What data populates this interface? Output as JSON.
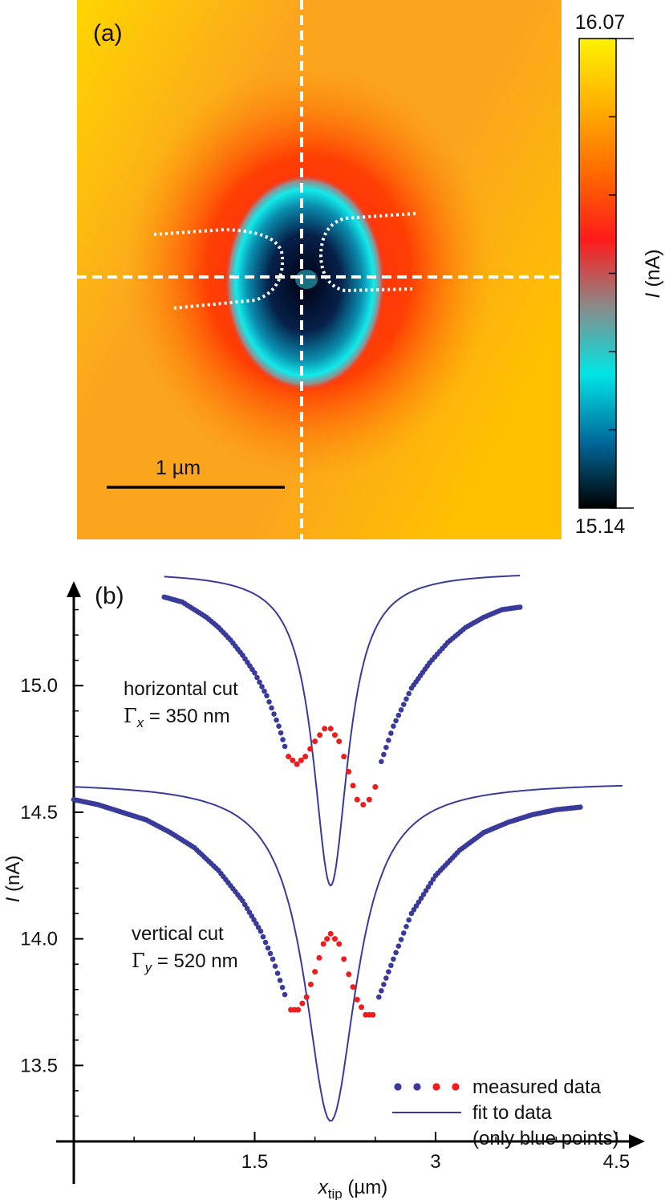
{
  "chart_data": [
    {
      "panel_label": "(a)",
      "type": "heatmap",
      "colorbar": {
        "label_italic": "I",
        "label_rest": " (nA)",
        "max": 16.07,
        "min": 15.14,
        "max_label": "16.07",
        "min_label": "15.14",
        "colors": [
          "#fff200",
          "#ffb000",
          "#ff6a00",
          "#ff1a1a",
          "#8a8a8a",
          "#00e5e5",
          "#006b9e",
          "#000000"
        ]
      },
      "scale_bar_label": "1 µm",
      "colors": {
        "background": "#fba51e",
        "cut_lines": "#ffffff",
        "scale_bar": "#000000"
      }
    },
    {
      "panel_label": "(b)",
      "type": "line",
      "xlabel_italic": "x",
      "xlabel_sub": "tip",
      "xlabel_rest": " (µm)",
      "ylabel_italic": "I",
      "ylabel_rest": " (nA)",
      "xlim": [
        0,
        4.55
      ],
      "ylim": [
        13.2,
        15.4
      ],
      "xticks": [
        {
          "value": 1.5,
          "label": "1.5"
        },
        {
          "value": 3,
          "label": "3"
        },
        {
          "value": 4.5,
          "label": "4.5"
        }
      ],
      "yticks": [
        {
          "value": 13.5,
          "label": "13.5"
        },
        {
          "value": 14.0,
          "label": "14.0"
        },
        {
          "value": 14.5,
          "label": "14.5"
        },
        {
          "value": 15.0,
          "label": "15.0"
        }
      ],
      "annotations": {
        "horizontal_1": "horizontal cut",
        "horizontal_gamma_sym": "Γ",
        "horizontal_gamma_sub": "x",
        "horizontal_gamma_val": " = 350 nm",
        "vertical_1": "vertical cut",
        "vertical_gamma_sym": "Γ",
        "vertical_gamma_sub": "y",
        "vertical_gamma_val": " = 520 nm"
      },
      "legend": {
        "position": "bottom-right",
        "measured": "measured data",
        "fit": "fit to data",
        "fit_note": "(only blue points)"
      },
      "series": [
        {
          "name": "horizontal cut",
          "center": 2.13,
          "measured_blue_left": [
            [
              0.75,
              15.35
            ],
            [
              0.9,
              15.33
            ],
            [
              1.0,
              15.3
            ],
            [
              1.1,
              15.27
            ],
            [
              1.2,
              15.23
            ],
            [
              1.3,
              15.18
            ],
            [
              1.4,
              15.12
            ],
            [
              1.5,
              15.05
            ],
            [
              1.6,
              14.96
            ],
            [
              1.7,
              14.84
            ],
            [
              1.75,
              14.76
            ]
          ],
          "measured_red": [
            [
              1.78,
              14.72
            ],
            [
              1.85,
              14.69
            ],
            [
              1.92,
              14.72
            ],
            [
              2.0,
              14.78
            ],
            [
              2.08,
              14.83
            ],
            [
              2.13,
              14.83
            ],
            [
              2.2,
              14.78
            ],
            [
              2.28,
              14.66
            ],
            [
              2.35,
              14.55
            ],
            [
              2.4,
              14.53
            ],
            [
              2.45,
              14.55
            ],
            [
              2.5,
              14.6
            ]
          ],
          "measured_blue_right": [
            [
              2.55,
              14.7
            ],
            [
              2.65,
              14.84
            ],
            [
              2.8,
              14.99
            ],
            [
              2.95,
              15.09
            ],
            [
              3.1,
              15.17
            ],
            [
              3.25,
              15.23
            ],
            [
              3.4,
              15.27
            ],
            [
              3.55,
              15.3
            ],
            [
              3.7,
              15.31
            ]
          ],
          "fit": {
            "baseline": 15.45,
            "depth": 1.24,
            "gamma": 0.35,
            "x": [
              0.75,
              3.7
            ]
          }
        },
        {
          "name": "vertical cut",
          "center": 2.13,
          "measured_blue_left": [
            [
              0.0,
              14.55
            ],
            [
              0.2,
              14.53
            ],
            [
              0.4,
              14.5
            ],
            [
              0.6,
              14.47
            ],
            [
              0.8,
              14.42
            ],
            [
              1.0,
              14.36
            ],
            [
              1.2,
              14.27
            ],
            [
              1.4,
              14.15
            ],
            [
              1.55,
              14.03
            ],
            [
              1.65,
              13.92
            ],
            [
              1.75,
              13.78
            ]
          ],
          "measured_red": [
            [
              1.8,
              13.72
            ],
            [
              1.86,
              13.72
            ],
            [
              1.93,
              13.77
            ],
            [
              2.0,
              13.87
            ],
            [
              2.07,
              13.98
            ],
            [
              2.13,
              14.02
            ],
            [
              2.2,
              13.98
            ],
            [
              2.28,
              13.86
            ],
            [
              2.35,
              13.76
            ],
            [
              2.42,
              13.7
            ],
            [
              2.48,
              13.7
            ]
          ],
          "measured_blue_right": [
            [
              2.53,
              13.77
            ],
            [
              2.65,
              13.92
            ],
            [
              2.8,
              14.1
            ],
            [
              3.0,
              14.25
            ],
            [
              3.2,
              14.35
            ],
            [
              3.4,
              14.42
            ],
            [
              3.6,
              14.46
            ],
            [
              3.8,
              14.49
            ],
            [
              4.0,
              14.51
            ],
            [
              4.2,
              14.52
            ]
          ],
          "fit": {
            "baseline": 14.62,
            "depth": 1.34,
            "gamma": 0.52,
            "x": [
              0.0,
              4.55
            ]
          }
        }
      ],
      "colors": {
        "blue": "#3a3a9a",
        "red": "#ee1c1c",
        "axis": "#000000"
      }
    }
  ]
}
